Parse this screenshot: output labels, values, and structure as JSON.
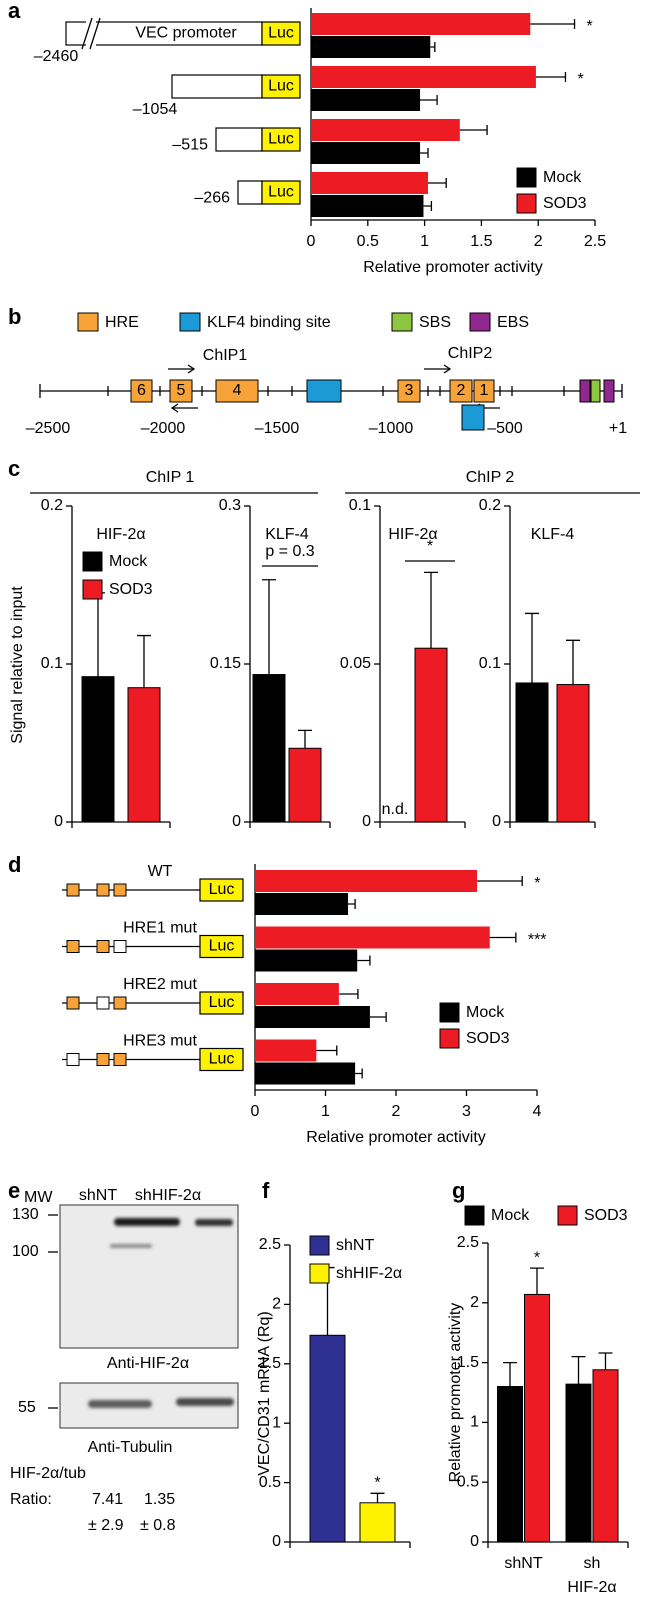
{
  "chart_data": [
    {
      "panel": "a",
      "type": "hbar",
      "categories": [
        "–2460",
        "–1054",
        "–515",
        "–266"
      ],
      "construct_label": "VEC promoter",
      "reporter": "Luc",
      "xlabel": "Relative promoter activity",
      "xlim": [
        0,
        2.5
      ],
      "xticks": [
        0,
        0.5,
        1,
        1.5,
        2,
        2.5
      ],
      "legend": "lower right",
      "series": [
        {
          "name": "Mock",
          "color": "#000000",
          "values": [
            1.05,
            0.96,
            0.96,
            0.99
          ],
          "errors": [
            0.04,
            0.15,
            0.07,
            0.07
          ]
        },
        {
          "name": "SOD3",
          "color": "#ed1c24",
          "values": [
            1.93,
            1.98,
            1.31,
            1.03
          ],
          "errors": [
            0.39,
            0.26,
            0.24,
            0.16
          ],
          "significance": [
            "*",
            "*",
            null,
            null
          ]
        }
      ]
    },
    {
      "type": "bar",
      "title": "HIF-2α",
      "categories": [
        null
      ],
      "ylim": [
        0,
        0.2
      ],
      "yticks": [
        0,
        0.1,
        0.2
      ],
      "legend": "upper left",
      "series": [
        {
          "name": "Mock",
          "color": "#000000",
          "values": [
            0.092
          ],
          "errors": [
            0.053
          ]
        },
        {
          "name": "SOD3",
          "color": "#ed1c24",
          "values": [
            0.085
          ],
          "errors": [
            0.033
          ]
        }
      ]
    },
    {
      "type": "bar",
      "title": "KLF-4",
      "categories": [
        null
      ],
      "ylim": [
        0,
        0.3
      ],
      "yticks": [
        0,
        0.15,
        0.3
      ],
      "comparison": "p = 0.3",
      "series": [
        {
          "name": "Mock",
          "color": "#000000",
          "values": [
            0.14
          ],
          "errors": [
            0.09
          ]
        },
        {
          "name": "SOD3",
          "color": "#ed1c24",
          "values": [
            0.07
          ],
          "errors": [
            0.017
          ]
        }
      ]
    },
    {
      "type": "bar",
      "title": "HIF-2α",
      "categories": [
        null
      ],
      "ylim": [
        0,
        0.1
      ],
      "yticks": [
        0,
        0.05,
        0.1
      ],
      "comparison": "*",
      "series": [
        {
          "name": "Mock",
          "color": "#000000",
          "values": [
            null
          ],
          "value_labels": [
            "n.d."
          ]
        },
        {
          "name": "SOD3",
          "color": "#ed1c24",
          "values": [
            0.055
          ],
          "errors": [
            0.024
          ]
        }
      ]
    },
    {
      "type": "bar",
      "title": "KLF-4",
      "categories": [
        null
      ],
      "ylim": [
        0,
        0.2
      ],
      "yticks": [
        0,
        0.1,
        0.2
      ],
      "series": [
        {
          "name": "Mock",
          "color": "#000000",
          "values": [
            0.088
          ],
          "errors": [
            0.044
          ]
        },
        {
          "name": "SOD3",
          "color": "#ed1c24",
          "values": [
            0.087
          ],
          "errors": [
            0.028
          ]
        }
      ]
    },
    {
      "panel": "d",
      "type": "hbar",
      "categories": [
        "WT",
        "HRE1 mut",
        "HRE2 mut",
        "HRE3 mut"
      ],
      "reporter": "Luc",
      "xlabel": "Relative promoter activity",
      "xlim": [
        0,
        4
      ],
      "xticks": [
        0,
        1,
        2,
        3,
        4
      ],
      "legend": "lower right",
      "series": [
        {
          "name": "Mock",
          "color": "#000000",
          "values": [
            1.32,
            1.45,
            1.63,
            1.42
          ],
          "errors": [
            0.1,
            0.18,
            0.23,
            0.1
          ]
        },
        {
          "name": "SOD3",
          "color": "#ed1c24",
          "values": [
            3.15,
            3.33,
            1.19,
            0.87
          ],
          "errors": [
            0.64,
            0.37,
            0.27,
            0.29
          ],
          "significance": [
            "*",
            "***",
            null,
            null
          ]
        }
      ]
    },
    {
      "panel": "f",
      "type": "bar",
      "categories": [
        null
      ],
      "ylabel": "VEC/CD31 mRNA (Rq)",
      "ylim": [
        0,
        2.5
      ],
      "yticks": [
        0,
        0.5,
        1,
        1.5,
        2,
        2.5
      ],
      "legend": "upper left",
      "series": [
        {
          "name": "shNT",
          "color": "#2e3192",
          "values": [
            1.74
          ],
          "errors": [
            0.57
          ]
        },
        {
          "name": "shHIF-2α",
          "color": "#fff200",
          "values": [
            0.33
          ],
          "errors": [
            0.08
          ],
          "significance": [
            "*"
          ]
        }
      ]
    },
    {
      "panel": "g",
      "type": "bar",
      "categories": [
        [
          "shNT"
        ],
        [
          "sh",
          "HIF-2α"
        ]
      ],
      "ylabel": "Relative promoter activity",
      "ylim": [
        0,
        2.5
      ],
      "yticks": [
        0,
        0.5,
        1,
        1.5,
        2,
        2.5
      ],
      "legend": "top",
      "series": [
        {
          "name": "Mock",
          "color": "#000000",
          "values": [
            1.3,
            1.32
          ],
          "errors": [
            0.2,
            0.23
          ]
        },
        {
          "name": "SOD3",
          "color": "#ed1c24",
          "values": [
            2.07,
            1.44
          ],
          "errors": [
            0.22,
            0.14
          ],
          "significance": [
            "*",
            null
          ]
        }
      ]
    }
  ],
  "panel_b": {
    "panel": "b",
    "legend": [
      {
        "label": "HRE",
        "color": "#f7a33a"
      },
      {
        "label": "KLF4 binding site",
        "color": "#1c9ad6"
      },
      {
        "label": "SBS",
        "color": "#8dc63f"
      },
      {
        "label": "EBS",
        "color": "#92278f"
      }
    ],
    "primers": [
      "ChIP1",
      "ChIP2"
    ],
    "hre_labels": [
      "6",
      "5",
      "4",
      "3",
      "2",
      "1"
    ],
    "axis_labels": [
      "–2500",
      "–2000",
      "–1500",
      "–1000",
      "–500",
      "+1"
    ]
  },
  "panel_c": {
    "panel": "c",
    "groups": [
      "ChIP 1",
      "ChIP 2"
    ],
    "ylabel": "Signal relative to input"
  },
  "panel_e": {
    "panel": "e",
    "mw_label": "MW",
    "lanes": [
      "shNT",
      "shHIF-2α"
    ],
    "mw_markers": [
      "130",
      "100",
      "55"
    ],
    "blots": [
      "Anti-HIF-2α",
      "Anti-Tubulin"
    ],
    "ratio_title": "HIF-2α/tub",
    "ratio_label": "Ratio:",
    "ratios": [
      "7.41",
      "1.35"
    ],
    "ratio_errors": [
      "± 2.9",
      "± 0.8"
    ]
  }
}
